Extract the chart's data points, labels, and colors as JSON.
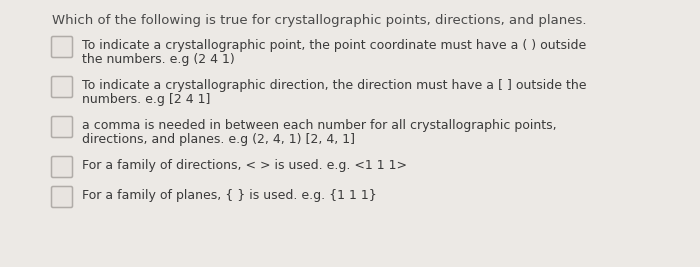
{
  "background_color": "#ece9e5",
  "title": "Which of the following is true for crystallographic points, directions, and planes.",
  "title_fontsize": 9.5,
  "options": [
    {
      "line1": "To indicate a crystallographic point, the point coordinate must have a ( ) outside",
      "line2": "the numbers. e.g (2 4 1)"
    },
    {
      "line1": "To indicate a crystallographic direction, the direction must have a [ ] outside the",
      "line2": "numbers. e.g [2 4 1]"
    },
    {
      "line1": "a comma is needed in between each number for all crystallographic points,",
      "line2": "directions, and planes. e.g (2, 4, 1) [2, 4, 1]"
    },
    {
      "line1": "For a family of directions, < > is used. e.g. <1 1 1>",
      "line2": null
    },
    {
      "line1": "For a family of planes, { } is used. e.g. {1 1 1}",
      "line2": null
    }
  ],
  "text_fontsize": 9.0,
  "text_color": "#3a3a3a",
  "title_color": "#4a4a4a",
  "checkbox_edgecolor": "#b0aca8",
  "checkbox_facecolor": "#e8e4e0"
}
